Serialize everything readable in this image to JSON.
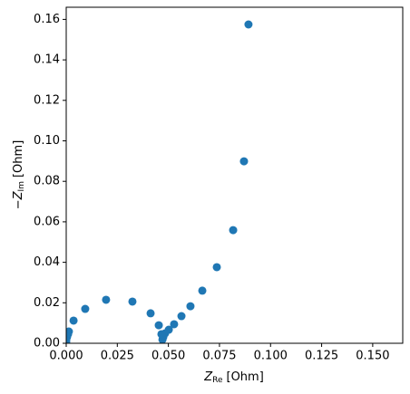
{
  "chart_data": {
    "type": "scatter",
    "xlabel": {
      "main": "Z",
      "sub": "Re",
      "unit": "[Ohm]"
    },
    "ylabel": {
      "main": "−Z",
      "sub": "Im",
      "unit": "[Ohm]"
    },
    "x": [
      0.0892,
      0.087,
      0.0817,
      0.0737,
      0.0666,
      0.0608,
      0.0564,
      0.0528,
      0.0502,
      0.0484,
      0.0475,
      0.0471,
      0.0466,
      0.0453,
      0.0413,
      0.0324,
      0.0195,
      0.0093,
      0.0036,
      0.0013,
      0.0009,
      0.0004,
      0.0,
      0.0
    ],
    "series": [
      {
        "color": "#1f77b4",
        "values": [
          0.1575,
          0.0899,
          0.0559,
          0.0376,
          0.026,
          0.0183,
          0.0134,
          0.0094,
          0.0067,
          0.0049,
          0.0031,
          0.0018,
          0.0045,
          0.0089,
          0.0148,
          0.0206,
          0.0215,
          0.017,
          0.0112,
          0.0058,
          0.0045,
          0.0031,
          0.0013,
          0.0
        ]
      }
    ],
    "xlim": [
      0,
      0.1647
    ],
    "ylim": [
      0,
      0.166
    ],
    "xticks": [
      {
        "value": 0,
        "label": "0.000"
      },
      {
        "value": 0.025,
        "label": "0.025"
      },
      {
        "value": 0.05,
        "label": "0.050"
      },
      {
        "value": 0.075,
        "label": "0.075"
      },
      {
        "value": 0.1,
        "label": "0.100"
      },
      {
        "value": 0.125,
        "label": "0.125"
      },
      {
        "value": 0.15,
        "label": "0.150"
      }
    ],
    "yticks": [
      {
        "value": 0,
        "label": "0.00"
      },
      {
        "value": 0.02,
        "label": "0.02"
      },
      {
        "value": 0.04,
        "label": "0.04"
      },
      {
        "value": 0.06,
        "label": "0.06"
      },
      {
        "value": 0.08,
        "label": "0.08"
      },
      {
        "value": 0.1,
        "label": "0.10"
      },
      {
        "value": 0.12,
        "label": "0.12"
      },
      {
        "value": 0.14,
        "label": "0.14"
      },
      {
        "value": 0.16,
        "label": "0.16"
      }
    ],
    "grid": false
  }
}
